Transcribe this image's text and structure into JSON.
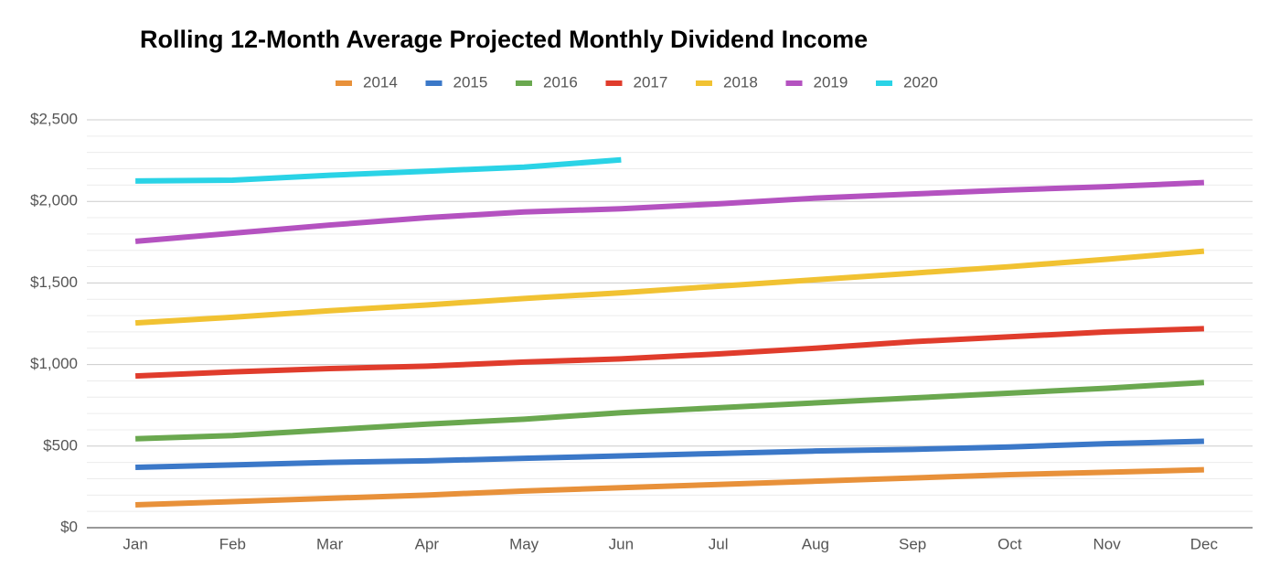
{
  "chart_data": {
    "type": "line",
    "title": "Rolling 12-Month Average Projected Monthly Dividend Income",
    "categories": [
      "Jan",
      "Feb",
      "Mar",
      "Apr",
      "May",
      "Jun",
      "Jul",
      "Aug",
      "Sep",
      "Oct",
      "Nov",
      "Dec"
    ],
    "series": [
      {
        "name": "2014",
        "color": "#e8913a",
        "values": [
          140,
          160,
          180,
          200,
          225,
          245,
          265,
          285,
          305,
          325,
          340,
          355
        ]
      },
      {
        "name": "2015",
        "color": "#3b78c8",
        "values": [
          370,
          385,
          400,
          410,
          425,
          440,
          455,
          470,
          480,
          495,
          515,
          530
        ]
      },
      {
        "name": "2016",
        "color": "#6aa84f",
        "values": [
          545,
          565,
          600,
          635,
          665,
          705,
          735,
          765,
          795,
          825,
          855,
          890
        ]
      },
      {
        "name": "2017",
        "color": "#e03c2c",
        "values": [
          930,
          955,
          975,
          990,
          1015,
          1035,
          1065,
          1100,
          1140,
          1170,
          1200,
          1220
        ]
      },
      {
        "name": "2018",
        "color": "#f1c232",
        "values": [
          1255,
          1290,
          1330,
          1365,
          1405,
          1440,
          1480,
          1520,
          1560,
          1600,
          1645,
          1695
        ]
      },
      {
        "name": "2019",
        "color": "#b452c0",
        "values": [
          1755,
          1805,
          1855,
          1900,
          1935,
          1955,
          1985,
          2020,
          2045,
          2070,
          2090,
          2115
        ]
      },
      {
        "name": "2020",
        "color": "#2ad3e6",
        "values": [
          2125,
          2130,
          2160,
          2185,
          2210,
          2255,
          null,
          null,
          null,
          null,
          null,
          null
        ]
      }
    ],
    "ylim": [
      0,
      2500
    ],
    "yticks": [
      {
        "value": 0,
        "label": "$0"
      },
      {
        "value": 500,
        "label": "$500"
      },
      {
        "value": 1000,
        "label": "$1,000"
      },
      {
        "value": 1500,
        "label": "$1,500"
      },
      {
        "value": 2000,
        "label": "$2,000"
      },
      {
        "value": 2500,
        "label": "$2,500"
      }
    ],
    "minor_yticks": [
      100,
      200,
      300,
      400,
      600,
      700,
      800,
      900,
      1100,
      1200,
      1300,
      1400,
      1600,
      1700,
      1800,
      1900,
      2100,
      2200,
      2300,
      2400
    ],
    "grid": true,
    "legend": "top"
  }
}
